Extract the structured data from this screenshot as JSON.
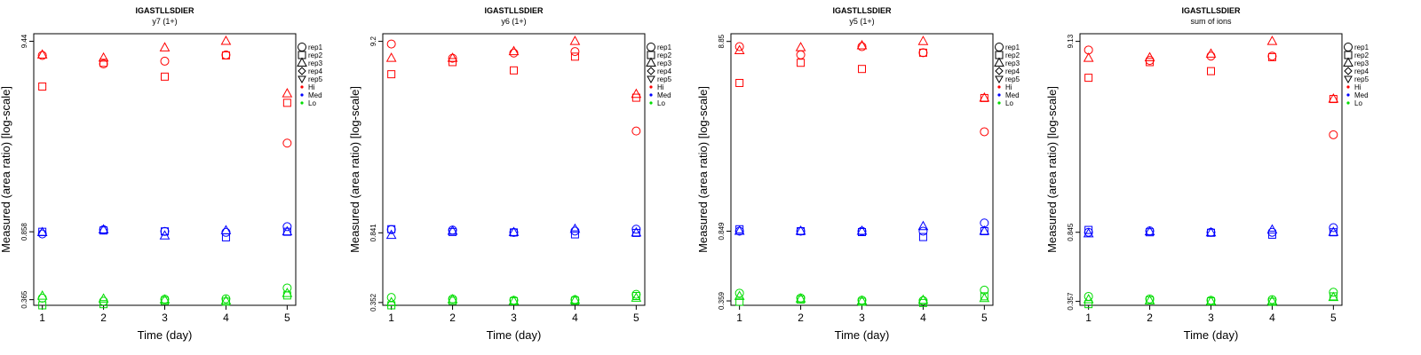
{
  "chart_data": [
    {
      "type": "scatter",
      "title": "IGASTLLSDIER",
      "subtitle": "y7 (1+)",
      "xlabel": "Time (day)",
      "ylabel": "Measured (area ratio) [log-scale]",
      "log_y": true,
      "x_ticks": [
        1,
        2,
        3,
        4,
        5
      ],
      "y_tick_labels": [
        "0.365",
        "0.858",
        "9.44"
      ],
      "ylim": [
        0.34,
        9.44
      ],
      "legend_position": "right",
      "legend": [
        {
          "label": "rep1",
          "marker": "circle"
        },
        {
          "label": "rep2",
          "marker": "square"
        },
        {
          "label": "rep3",
          "marker": "triangle"
        },
        {
          "label": "rep4",
          "marker": "diamond"
        },
        {
          "label": "rep5",
          "marker": "triangle-down"
        },
        {
          "label": "Hi",
          "marker": "dot",
          "color": "#ff0000"
        },
        {
          "label": "Med",
          "marker": "dot",
          "color": "#0000ff"
        },
        {
          "label": "Lo",
          "marker": "dot",
          "color": "#00dd00"
        }
      ],
      "series": [
        {
          "group": "Hi",
          "rep": "rep1",
          "x": [
            1,
            2,
            3,
            4,
            5
          ],
          "y": [
            7.9,
            7.1,
            7.35,
            7.95,
            2.62
          ]
        },
        {
          "group": "Hi",
          "rep": "rep2",
          "x": [
            1,
            2,
            3,
            4,
            5
          ],
          "y": [
            5.34,
            7.2,
            6.05,
            7.9,
            4.35
          ]
        },
        {
          "group": "Hi",
          "rep": "rep3",
          "x": [
            1,
            2,
            3,
            4,
            5
          ],
          "y": [
            7.95,
            7.65,
            8.7,
            9.44,
            4.88
          ]
        },
        {
          "group": "Med",
          "rep": "rep1",
          "x": [
            1,
            2,
            3,
            4,
            5
          ],
          "y": [
            0.835,
            0.88,
            0.862,
            0.852,
            0.915
          ]
        },
        {
          "group": "Med",
          "rep": "rep2",
          "x": [
            1,
            2,
            3,
            4,
            5
          ],
          "y": [
            0.858,
            0.872,
            0.862,
            0.8,
            0.858
          ]
        },
        {
          "group": "Med",
          "rep": "rep3",
          "x": [
            1,
            2,
            3,
            4,
            5
          ],
          "y": [
            0.85,
            0.88,
            0.815,
            0.87,
            0.858
          ]
        },
        {
          "group": "Lo",
          "rep": "rep1",
          "x": [
            1,
            2,
            3,
            4,
            5
          ],
          "y": [
            0.372,
            0.358,
            0.367,
            0.369,
            0.423
          ]
        },
        {
          "group": "Lo",
          "rep": "rep2",
          "x": [
            1,
            2,
            3,
            4,
            5
          ],
          "y": [
            0.34,
            0.345,
            0.36,
            0.356,
            0.385
          ]
        },
        {
          "group": "Lo",
          "rep": "rep3",
          "x": [
            1,
            2,
            3,
            4,
            5
          ],
          "y": [
            0.382,
            0.368,
            0.364,
            0.36,
            0.395
          ]
        }
      ]
    },
    {
      "type": "scatter",
      "title": "IGASTLLSDIER",
      "subtitle": "y6 (1+)",
      "xlabel": "Time (day)",
      "ylabel": "Measured (area ratio) [log-scale]",
      "log_y": true,
      "x_ticks": [
        1,
        2,
        3,
        4,
        5
      ],
      "y_tick_labels": [
        "0.352",
        "0.841",
        "9.2"
      ],
      "ylim": [
        0.34,
        9.2
      ],
      "legend_position": "right",
      "legend": [
        {
          "label": "rep1",
          "marker": "circle"
        },
        {
          "label": "rep2",
          "marker": "square"
        },
        {
          "label": "rep3",
          "marker": "triangle"
        },
        {
          "label": "rep4",
          "marker": "diamond"
        },
        {
          "label": "rep5",
          "marker": "triangle-down"
        },
        {
          "label": "Hi",
          "marker": "dot",
          "color": "#ff0000"
        },
        {
          "label": "Med",
          "marker": "dot",
          "color": "#0000ff"
        },
        {
          "label": "Lo",
          "marker": "dot",
          "color": "#00dd00"
        }
      ],
      "series": [
        {
          "group": "Hi",
          "rep": "rep1",
          "x": [
            1,
            2,
            3,
            4,
            5
          ],
          "y": [
            8.9,
            7.45,
            7.95,
            8.1,
            3.0
          ]
        },
        {
          "group": "Hi",
          "rep": "rep2",
          "x": [
            1,
            2,
            3,
            4,
            5
          ],
          "y": [
            6.1,
            7.1,
            6.4,
            7.6,
            4.55
          ]
        },
        {
          "group": "Hi",
          "rep": "rep3",
          "x": [
            1,
            2,
            3,
            4,
            5
          ],
          "y": [
            7.45,
            7.45,
            8.1,
            9.2,
            4.75
          ]
        },
        {
          "group": "Med",
          "rep": "rep1",
          "x": [
            1,
            2,
            3,
            4,
            5
          ],
          "y": [
            0.875,
            0.87,
            0.845,
            0.86,
            0.88
          ]
        },
        {
          "group": "Med",
          "rep": "rep2",
          "x": [
            1,
            2,
            3,
            4,
            5
          ],
          "y": [
            0.88,
            0.85,
            0.845,
            0.825,
            0.84
          ]
        },
        {
          "group": "Med",
          "rep": "rep3",
          "x": [
            1,
            2,
            3,
            4,
            5
          ],
          "y": [
            0.815,
            0.858,
            0.845,
            0.88,
            0.841
          ]
        },
        {
          "group": "Lo",
          "rep": "rep1",
          "x": [
            1,
            2,
            3,
            4,
            5
          ],
          "y": [
            0.375,
            0.368,
            0.362,
            0.365,
            0.39
          ]
        },
        {
          "group": "Lo",
          "rep": "rep2",
          "x": [
            1,
            2,
            3,
            4,
            5
          ],
          "y": [
            0.34,
            0.36,
            0.358,
            0.36,
            0.382
          ]
        },
        {
          "group": "Lo",
          "rep": "rep3",
          "x": [
            1,
            2,
            3,
            4,
            5
          ],
          "y": [
            0.352,
            0.365,
            0.358,
            0.362,
            0.372
          ]
        }
      ]
    },
    {
      "type": "scatter",
      "title": "IGASTLLSDIER",
      "subtitle": "y5 (1+)",
      "xlabel": "Time (day)",
      "ylabel": "Measured (area ratio) [log-scale]",
      "log_y": true,
      "x_ticks": [
        1,
        2,
        3,
        4,
        5
      ],
      "y_tick_labels": [
        "0.359",
        "0.849",
        "8.85"
      ],
      "ylim": [
        0.34,
        8.85
      ],
      "legend_position": "right",
      "legend": [
        {
          "label": "rep1",
          "marker": "circle"
        },
        {
          "label": "rep2",
          "marker": "square"
        },
        {
          "label": "rep3",
          "marker": "triangle"
        },
        {
          "label": "rep4",
          "marker": "diamond"
        },
        {
          "label": "rep5",
          "marker": "triangle-down"
        },
        {
          "label": "Hi",
          "marker": "dot",
          "color": "#ff0000"
        },
        {
          "label": "Med",
          "marker": "dot",
          "color": "#0000ff"
        },
        {
          "label": "Lo",
          "marker": "dot",
          "color": "#00dd00"
        }
      ],
      "series": [
        {
          "group": "Hi",
          "rep": "rep1",
          "x": [
            1,
            2,
            3,
            4,
            5
          ],
          "y": [
            8.3,
            7.5,
            8.3,
            7.7,
            2.9
          ]
        },
        {
          "group": "Hi",
          "rep": "rep2",
          "x": [
            1,
            2,
            3,
            4,
            5
          ],
          "y": [
            5.3,
            6.8,
            6.3,
            7.7,
            4.4
          ]
        },
        {
          "group": "Hi",
          "rep": "rep3",
          "x": [
            1,
            2,
            3,
            4,
            5
          ],
          "y": [
            7.9,
            8.2,
            8.4,
            8.85,
            4.4
          ]
        },
        {
          "group": "Med",
          "rep": "rep1",
          "x": [
            1,
            2,
            3,
            4,
            5
          ],
          "y": [
            0.849,
            0.849,
            0.849,
            0.849,
            0.94
          ]
        },
        {
          "group": "Med",
          "rep": "rep2",
          "x": [
            1,
            2,
            3,
            4,
            5
          ],
          "y": [
            0.87,
            0.849,
            0.84,
            0.79,
            0.849
          ]
        },
        {
          "group": "Med",
          "rep": "rep3",
          "x": [
            1,
            2,
            3,
            4,
            5
          ],
          "y": [
            0.849,
            0.849,
            0.849,
            0.9,
            0.849
          ]
        },
        {
          "group": "Lo",
          "rep": "rep1",
          "x": [
            1,
            2,
            3,
            4,
            5
          ],
          "y": [
            0.395,
            0.372,
            0.362,
            0.36,
            0.41
          ]
        },
        {
          "group": "Lo",
          "rep": "rep2",
          "x": [
            1,
            2,
            3,
            4,
            5
          ],
          "y": [
            0.355,
            0.365,
            0.355,
            0.35,
            0.38
          ]
        },
        {
          "group": "Lo",
          "rep": "rep3",
          "x": [
            1,
            2,
            3,
            4,
            5
          ],
          "y": [
            0.38,
            0.368,
            0.358,
            0.362,
            0.37
          ]
        }
      ]
    },
    {
      "type": "scatter",
      "title": "IGASTLLSDIER",
      "subtitle": "sum of ions",
      "xlabel": "Time (day)",
      "ylabel": "Measured (area ratio) [log-scale]",
      "log_y": true,
      "x_ticks": [
        1,
        2,
        3,
        4,
        5
      ],
      "y_tick_labels": [
        "0.357",
        "0.845",
        "9.13"
      ],
      "ylim": [
        0.34,
        9.13
      ],
      "legend_position": "right",
      "legend": [
        {
          "label": "rep1",
          "marker": "circle"
        },
        {
          "label": "rep2",
          "marker": "square"
        },
        {
          "label": "rep3",
          "marker": "triangle"
        },
        {
          "label": "rep4",
          "marker": "diamond"
        },
        {
          "label": "rep5",
          "marker": "triangle-down"
        },
        {
          "label": "Hi",
          "marker": "dot",
          "color": "#ff0000"
        },
        {
          "label": "Med",
          "marker": "dot",
          "color": "#0000ff"
        },
        {
          "label": "Lo",
          "marker": "dot",
          "color": "#00dd00"
        }
      ],
      "series": [
        {
          "group": "Hi",
          "rep": "rep1",
          "x": [
            1,
            2,
            3,
            4,
            5
          ],
          "y": [
            8.2,
            7.2,
            7.6,
            7.6,
            2.85
          ]
        },
        {
          "group": "Hi",
          "rep": "rep2",
          "x": [
            1,
            2,
            3,
            4,
            5
          ],
          "y": [
            5.8,
            7.05,
            6.3,
            7.5,
            4.45
          ]
        },
        {
          "group": "Hi",
          "rep": "rep3",
          "x": [
            1,
            2,
            3,
            4,
            5
          ],
          "y": [
            7.4,
            7.45,
            7.8,
            9.13,
            4.45
          ]
        },
        {
          "group": "Med",
          "rep": "rep1",
          "x": [
            1,
            2,
            3,
            4,
            5
          ],
          "y": [
            0.845,
            0.86,
            0.845,
            0.845,
            0.895
          ]
        },
        {
          "group": "Med",
          "rep": "rep2",
          "x": [
            1,
            2,
            3,
            4,
            5
          ],
          "y": [
            0.87,
            0.845,
            0.84,
            0.82,
            0.845
          ]
        },
        {
          "group": "Med",
          "rep": "rep3",
          "x": [
            1,
            2,
            3,
            4,
            5
          ],
          "y": [
            0.83,
            0.85,
            0.84,
            0.87,
            0.845
          ]
        },
        {
          "group": "Lo",
          "rep": "rep1",
          "x": [
            1,
            2,
            3,
            4,
            5
          ],
          "y": [
            0.38,
            0.368,
            0.362,
            0.365,
            0.4
          ]
        },
        {
          "group": "Lo",
          "rep": "rep2",
          "x": [
            1,
            2,
            3,
            4,
            5
          ],
          "y": [
            0.345,
            0.362,
            0.357,
            0.355,
            0.38
          ]
        },
        {
          "group": "Lo",
          "rep": "rep3",
          "x": [
            1,
            2,
            3,
            4,
            5
          ],
          "y": [
            0.365,
            0.36,
            0.357,
            0.358,
            0.375
          ]
        }
      ]
    }
  ]
}
